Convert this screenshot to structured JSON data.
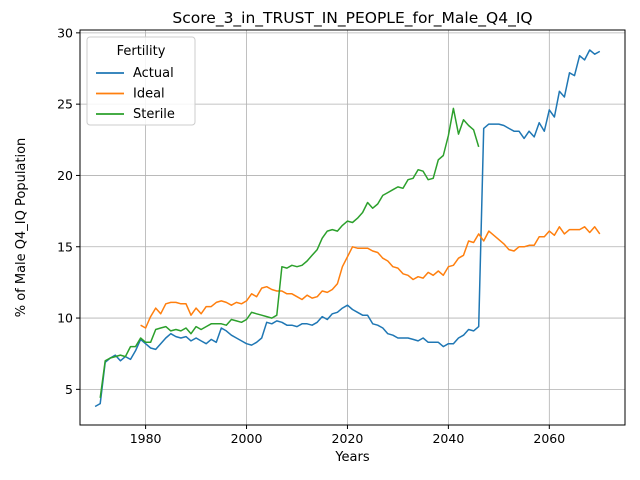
{
  "chart_data": {
    "type": "line",
    "title": "Score_3_in_TRUST_IN_PEOPLE_for_Male_Q4_IQ",
    "xlabel": "Years",
    "ylabel": "% of Male Q4_IQ Population",
    "xlim": [
      1967,
      2075
    ],
    "ylim": [
      2.5,
      30.2
    ],
    "xticks": [
      1980,
      2000,
      2020,
      2040,
      2060
    ],
    "yticks": [
      5,
      10,
      15,
      20,
      25,
      30
    ],
    "grid": true,
    "legend": {
      "title": "Fertility",
      "placement": "top-left"
    },
    "series": [
      {
        "name": "Actual",
        "color": "#1f77b4",
        "points": [
          [
            1970,
            3.8
          ],
          [
            1971,
            4.0
          ],
          [
            1972,
            6.9
          ],
          [
            1973,
            7.2
          ],
          [
            1974,
            7.4
          ],
          [
            1975,
            7.0
          ],
          [
            1976,
            7.3
          ],
          [
            1977,
            7.1
          ],
          [
            1978,
            7.7
          ],
          [
            1979,
            8.5
          ],
          [
            1980,
            8.2
          ],
          [
            1981,
            7.9
          ],
          [
            1982,
            7.8
          ],
          [
            1983,
            8.2
          ],
          [
            1984,
            8.6
          ],
          [
            1985,
            8.9
          ],
          [
            1986,
            8.7
          ],
          [
            1987,
            8.6
          ],
          [
            1988,
            8.7
          ],
          [
            1989,
            8.4
          ],
          [
            1990,
            8.6
          ],
          [
            1991,
            8.4
          ],
          [
            1992,
            8.2
          ],
          [
            1993,
            8.5
          ],
          [
            1994,
            8.3
          ],
          [
            1995,
            9.3
          ],
          [
            1996,
            9.1
          ],
          [
            1997,
            8.8
          ],
          [
            1998,
            8.6
          ],
          [
            1999,
            8.4
          ],
          [
            2000,
            8.2
          ],
          [
            2001,
            8.1
          ],
          [
            2002,
            8.3
          ],
          [
            2003,
            8.6
          ],
          [
            2004,
            9.7
          ],
          [
            2005,
            9.6
          ],
          [
            2006,
            9.8
          ],
          [
            2007,
            9.7
          ],
          [
            2008,
            9.5
          ],
          [
            2009,
            9.5
          ],
          [
            2010,
            9.4
          ],
          [
            2011,
            9.6
          ],
          [
            2012,
            9.6
          ],
          [
            2013,
            9.5
          ],
          [
            2014,
            9.7
          ],
          [
            2015,
            10.1
          ],
          [
            2016,
            9.9
          ],
          [
            2017,
            10.3
          ],
          [
            2018,
            10.4
          ],
          [
            2019,
            10.7
          ],
          [
            2020,
            10.9
          ],
          [
            2021,
            10.6
          ],
          [
            2022,
            10.4
          ],
          [
            2023,
            10.2
          ],
          [
            2024,
            10.2
          ],
          [
            2025,
            9.6
          ],
          [
            2026,
            9.5
          ],
          [
            2027,
            9.3
          ],
          [
            2028,
            8.9
          ],
          [
            2029,
            8.8
          ],
          [
            2030,
            8.6
          ],
          [
            2031,
            8.6
          ],
          [
            2032,
            8.6
          ],
          [
            2033,
            8.5
          ],
          [
            2034,
            8.4
          ],
          [
            2035,
            8.6
          ],
          [
            2036,
            8.3
          ],
          [
            2037,
            8.3
          ],
          [
            2038,
            8.3
          ],
          [
            2039,
            8.0
          ],
          [
            2040,
            8.2
          ],
          [
            2041,
            8.2
          ],
          [
            2042,
            8.6
          ],
          [
            2043,
            8.8
          ],
          [
            2044,
            9.2
          ],
          [
            2045,
            9.1
          ],
          [
            2046,
            9.4
          ],
          [
            2047,
            23.3
          ],
          [
            2048,
            23.6
          ],
          [
            2049,
            23.6
          ],
          [
            2050,
            23.6
          ],
          [
            2051,
            23.5
          ],
          [
            2052,
            23.3
          ],
          [
            2053,
            23.1
          ],
          [
            2054,
            23.1
          ],
          [
            2055,
            22.6
          ],
          [
            2056,
            23.1
          ],
          [
            2057,
            22.7
          ],
          [
            2058,
            23.7
          ],
          [
            2059,
            23.1
          ],
          [
            2060,
            24.6
          ],
          [
            2061,
            24.1
          ],
          [
            2062,
            25.9
          ],
          [
            2063,
            25.5
          ],
          [
            2064,
            27.2
          ],
          [
            2065,
            27.0
          ],
          [
            2066,
            28.4
          ],
          [
            2067,
            28.1
          ],
          [
            2068,
            28.8
          ],
          [
            2069,
            28.5
          ],
          [
            2070,
            28.7
          ]
        ]
      },
      {
        "name": "Ideal",
        "color": "#ff7f0e",
        "points": [
          [
            1979,
            9.5
          ],
          [
            1980,
            9.3
          ],
          [
            1981,
            10.1
          ],
          [
            1982,
            10.7
          ],
          [
            1983,
            10.3
          ],
          [
            1984,
            11.0
          ],
          [
            1985,
            11.1
          ],
          [
            1986,
            11.1
          ],
          [
            1987,
            11.0
          ],
          [
            1988,
            11.0
          ],
          [
            1989,
            10.2
          ],
          [
            1990,
            10.7
          ],
          [
            1991,
            10.3
          ],
          [
            1992,
            10.8
          ],
          [
            1993,
            10.8
          ],
          [
            1994,
            11.1
          ],
          [
            1995,
            11.2
          ],
          [
            1996,
            11.1
          ],
          [
            1997,
            10.9
          ],
          [
            1998,
            11.1
          ],
          [
            1999,
            11.0
          ],
          [
            2000,
            11.2
          ],
          [
            2001,
            11.7
          ],
          [
            2002,
            11.5
          ],
          [
            2003,
            12.1
          ],
          [
            2004,
            12.2
          ],
          [
            2005,
            12.0
          ],
          [
            2006,
            11.9
          ],
          [
            2007,
            11.9
          ],
          [
            2008,
            11.7
          ],
          [
            2009,
            11.7
          ],
          [
            2010,
            11.5
          ],
          [
            2011,
            11.3
          ],
          [
            2012,
            11.6
          ],
          [
            2013,
            11.4
          ],
          [
            2014,
            11.5
          ],
          [
            2015,
            11.9
          ],
          [
            2016,
            11.8
          ],
          [
            2017,
            12.0
          ],
          [
            2018,
            12.4
          ],
          [
            2019,
            13.6
          ],
          [
            2020,
            14.3
          ],
          [
            2021,
            15.0
          ],
          [
            2022,
            14.9
          ],
          [
            2023,
            14.9
          ],
          [
            2024,
            14.9
          ],
          [
            2025,
            14.7
          ],
          [
            2026,
            14.6
          ],
          [
            2027,
            14.2
          ],
          [
            2028,
            14.0
          ],
          [
            2029,
            13.6
          ],
          [
            2030,
            13.5
          ],
          [
            2031,
            13.1
          ],
          [
            2032,
            13.0
          ],
          [
            2033,
            12.7
          ],
          [
            2034,
            12.9
          ],
          [
            2035,
            12.8
          ],
          [
            2036,
            13.2
          ],
          [
            2037,
            13.0
          ],
          [
            2038,
            13.3
          ],
          [
            2039,
            13.0
          ],
          [
            2040,
            13.6
          ],
          [
            2041,
            13.7
          ],
          [
            2042,
            14.2
          ],
          [
            2043,
            14.4
          ],
          [
            2044,
            15.4
          ],
          [
            2045,
            15.3
          ],
          [
            2046,
            15.9
          ],
          [
            2047,
            15.4
          ],
          [
            2048,
            16.1
          ],
          [
            2049,
            15.8
          ],
          [
            2050,
            15.5
          ],
          [
            2051,
            15.2
          ],
          [
            2052,
            14.8
          ],
          [
            2053,
            14.7
          ],
          [
            2054,
            15.0
          ],
          [
            2055,
            15.0
          ],
          [
            2056,
            15.1
          ],
          [
            2057,
            15.1
          ],
          [
            2058,
            15.7
          ],
          [
            2059,
            15.7
          ],
          [
            2060,
            16.1
          ],
          [
            2061,
            15.8
          ],
          [
            2062,
            16.4
          ],
          [
            2063,
            15.9
          ],
          [
            2064,
            16.2
          ],
          [
            2065,
            16.2
          ],
          [
            2066,
            16.2
          ],
          [
            2067,
            16.4
          ],
          [
            2068,
            16.0
          ],
          [
            2069,
            16.4
          ],
          [
            2070,
            15.9
          ]
        ]
      },
      {
        "name": "Sterile",
        "color": "#2ca02c",
        "points": [
          [
            1971,
            4.4
          ],
          [
            1972,
            7.0
          ],
          [
            1973,
            7.2
          ],
          [
            1974,
            7.3
          ],
          [
            1975,
            7.4
          ],
          [
            1976,
            7.3
          ],
          [
            1977,
            8.0
          ],
          [
            1978,
            8.0
          ],
          [
            1979,
            8.6
          ],
          [
            1980,
            8.3
          ],
          [
            1981,
            8.3
          ],
          [
            1982,
            9.2
          ],
          [
            1983,
            9.3
          ],
          [
            1984,
            9.4
          ],
          [
            1985,
            9.1
          ],
          [
            1986,
            9.2
          ],
          [
            1987,
            9.1
          ],
          [
            1988,
            9.3
          ],
          [
            1989,
            8.9
          ],
          [
            1990,
            9.4
          ],
          [
            1991,
            9.2
          ],
          [
            1992,
            9.4
          ],
          [
            1993,
            9.6
          ],
          [
            1994,
            9.6
          ],
          [
            1995,
            9.6
          ],
          [
            1996,
            9.5
          ],
          [
            1997,
            9.9
          ],
          [
            1998,
            9.8
          ],
          [
            1999,
            9.7
          ],
          [
            2000,
            9.9
          ],
          [
            2001,
            10.4
          ],
          [
            2002,
            10.3
          ],
          [
            2003,
            10.2
          ],
          [
            2004,
            10.1
          ],
          [
            2005,
            10.0
          ],
          [
            2006,
            10.2
          ],
          [
            2007,
            13.6
          ],
          [
            2008,
            13.5
          ],
          [
            2009,
            13.7
          ],
          [
            2010,
            13.6
          ],
          [
            2011,
            13.7
          ],
          [
            2012,
            14.0
          ],
          [
            2013,
            14.4
          ],
          [
            2014,
            14.8
          ],
          [
            2015,
            15.6
          ],
          [
            2016,
            16.1
          ],
          [
            2017,
            16.2
          ],
          [
            2018,
            16.1
          ],
          [
            2019,
            16.5
          ],
          [
            2020,
            16.8
          ],
          [
            2021,
            16.7
          ],
          [
            2022,
            17.0
          ],
          [
            2023,
            17.4
          ],
          [
            2024,
            18.1
          ],
          [
            2025,
            17.7
          ],
          [
            2026,
            18.0
          ],
          [
            2027,
            18.6
          ],
          [
            2028,
            18.8
          ],
          [
            2029,
            19.0
          ],
          [
            2030,
            19.2
          ],
          [
            2031,
            19.1
          ],
          [
            2032,
            19.7
          ],
          [
            2033,
            19.8
          ],
          [
            2034,
            20.4
          ],
          [
            2035,
            20.3
          ],
          [
            2036,
            19.7
          ],
          [
            2037,
            19.8
          ],
          [
            2038,
            21.1
          ],
          [
            2039,
            21.4
          ],
          [
            2040,
            22.8
          ],
          [
            2041,
            24.7
          ],
          [
            2042,
            22.9
          ],
          [
            2043,
            23.9
          ],
          [
            2044,
            23.5
          ],
          [
            2045,
            23.2
          ],
          [
            2046,
            22.0
          ]
        ]
      }
    ]
  }
}
